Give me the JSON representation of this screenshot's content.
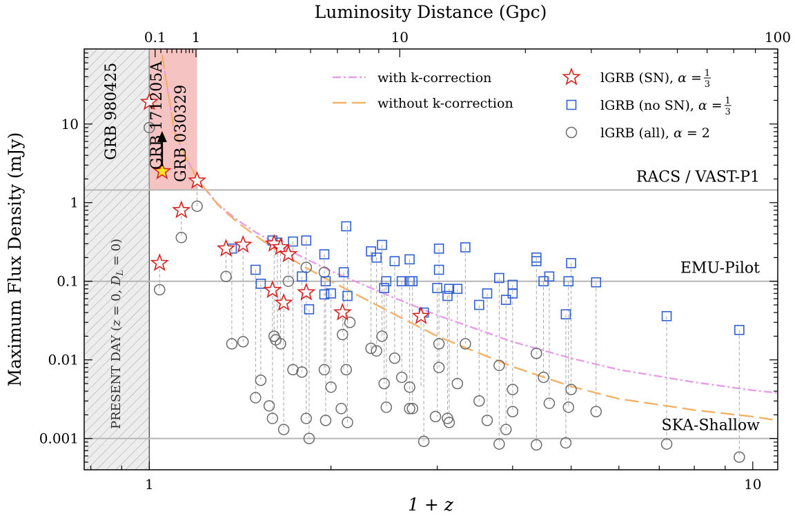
{
  "chart_data": {
    "type": "scatter",
    "xlabel": "1 + z",
    "ylabel": "Maximum Flux Density (mJy)",
    "top_xlabel": "Luminosity Distance (Gpc)",
    "x_scale": "log",
    "y_scale": "log",
    "xlim": [
      0.78,
      11.0
    ],
    "ylim": [
      0.0004,
      90
    ],
    "x_ticks": [
      {
        "v": 1,
        "label": "1"
      },
      {
        "v": 10,
        "label": "10"
      }
    ],
    "y_ticks": [
      {
        "v": 0.001,
        "label": "0.001"
      },
      {
        "v": 0.01,
        "label": "0.01"
      },
      {
        "v": 0.1,
        "label": "0.1"
      },
      {
        "v": 1,
        "label": "1"
      },
      {
        "v": 10,
        "label": "10"
      }
    ],
    "top_ticks": [
      {
        "z1": 1.0225,
        "label": "0.1"
      },
      {
        "z1": 1.195,
        "label": "1"
      },
      {
        "z1": 2.6,
        "label": "10"
      },
      {
        "z1": 11.0,
        "label": "100"
      }
    ],
    "survey_lines": [
      {
        "name": "RACS / VAST-P1",
        "y": 1.45
      },
      {
        "name": "EMU-Pilot",
        "y": 0.1
      },
      {
        "name": "SKA-Shallow",
        "y": 0.001
      }
    ],
    "present_day_label": "PRESENT DAY (z = 0, D_L = 0)",
    "present_day_label_parts": [
      "PRESENT DAY (",
      "z",
      " = 0, ",
      "D",
      "L",
      " = 0)"
    ],
    "highlight_band": {
      "x": [
        1.0,
        1.2
      ],
      "color": "#f4b8b8"
    },
    "grb_labels": [
      "GRB 980425",
      "GRB 171205A",
      "GRB 030329"
    ],
    "curves": [
      {
        "name": "with k-correction",
        "color": "#e79ce8",
        "dash": "12,4,3,4",
        "x": [
          1.05,
          1.1,
          1.15,
          1.2,
          1.3,
          1.4,
          1.5,
          1.6,
          1.8,
          2.0,
          2.5,
          3.0,
          4.0,
          5.0,
          6.0,
          8.0,
          10.0,
          11.0
        ],
        "y": [
          75,
          8,
          3.8,
          2.0,
          0.95,
          0.6,
          0.42,
          0.32,
          0.2,
          0.135,
          0.065,
          0.037,
          0.017,
          0.0105,
          0.0075,
          0.0052,
          0.0041,
          0.0038
        ]
      },
      {
        "name": "without k-correction",
        "color": "#f3b168",
        "dash": "20,8",
        "x": [
          1.05,
          1.1,
          1.15,
          1.2,
          1.3,
          1.4,
          1.5,
          1.6,
          1.8,
          2.0,
          2.5,
          3.0,
          4.0,
          5.0,
          6.0,
          8.0,
          10.0,
          11.0
        ],
        "y": [
          75,
          8,
          3.8,
          2.0,
          0.93,
          0.56,
          0.38,
          0.27,
          0.155,
          0.1,
          0.041,
          0.02,
          0.0082,
          0.0046,
          0.0032,
          0.0023,
          0.0019,
          0.0017
        ]
      }
    ],
    "series": [
      {
        "name": "lGRB (SN), α = 1/3",
        "marker": "star",
        "color": "#d81f1f",
        "points": [
          [
            1.0,
            19.0
          ],
          [
            1.04,
            0.17
          ],
          [
            1.13,
            0.8
          ],
          [
            1.2,
            1.9
          ],
          [
            1.34,
            0.26
          ],
          [
            1.43,
            0.29
          ],
          [
            1.61,
            0.3
          ],
          [
            1.6,
            0.077
          ],
          [
            1.65,
            0.27
          ],
          [
            1.67,
            0.053
          ],
          [
            1.7,
            0.22
          ],
          [
            1.82,
            0.072
          ],
          [
            2.09,
            0.04
          ],
          [
            2.82,
            0.036
          ]
        ]
      },
      {
        "name": "lGRB (SN), α = 1/3 (GRB 171205A)",
        "marker": "star-filled",
        "color": "#d81f1f",
        "fill": "#f7e71c",
        "points": [
          [
            1.05,
            2.5
          ]
        ]
      },
      {
        "name": "lGRB (no SN), α = 1/3",
        "marker": "square",
        "color": "#2f5fd1",
        "points": [
          [
            1.37,
            0.26
          ],
          [
            1.5,
            0.14
          ],
          [
            1.53,
            0.093
          ],
          [
            1.6,
            0.33
          ],
          [
            1.63,
            0.31
          ],
          [
            1.73,
            0.32
          ],
          [
            1.79,
            0.115
          ],
          [
            1.82,
            0.33
          ],
          [
            1.84,
            0.044
          ],
          [
            1.95,
            0.22
          ],
          [
            1.95,
            0.068
          ],
          [
            1.96,
            0.1
          ],
          [
            2.0,
            0.07
          ],
          [
            2.1,
            0.13
          ],
          [
            2.13,
            0.065
          ],
          [
            2.12,
            0.5
          ],
          [
            2.33,
            0.24
          ],
          [
            2.38,
            0.2
          ],
          [
            2.43,
            0.29
          ],
          [
            2.45,
            0.082
          ],
          [
            2.47,
            0.1
          ],
          [
            2.55,
            0.18
          ],
          [
            2.62,
            0.1
          ],
          [
            2.7,
            0.19
          ],
          [
            2.7,
            0.1
          ],
          [
            2.73,
            0.1
          ],
          [
            2.85,
            0.04
          ],
          [
            3.0,
            0.082
          ],
          [
            3.02,
            0.26
          ],
          [
            3.02,
            0.14
          ],
          [
            3.12,
            0.065
          ],
          [
            3.14,
            0.08
          ],
          [
            3.24,
            0.08
          ],
          [
            3.34,
            0.27
          ],
          [
            3.52,
            0.05
          ],
          [
            3.63,
            0.07
          ],
          [
            3.8,
            0.11
          ],
          [
            3.9,
            0.058
          ],
          [
            4.0,
            0.09
          ],
          [
            4.0,
            0.07
          ],
          [
            4.38,
            0.2
          ],
          [
            4.38,
            0.18
          ],
          [
            4.5,
            0.1
          ],
          [
            4.6,
            0.115
          ],
          [
            4.9,
            0.038
          ],
          [
            4.95,
            0.1
          ],
          [
            5.0,
            0.17
          ],
          [
            5.5,
            0.097
          ],
          [
            7.2,
            0.036
          ],
          [
            9.5,
            0.024
          ]
        ]
      },
      {
        "name": "lGRB (all), α = 2",
        "marker": "circle",
        "color": "#6a6a6a",
        "points": [
          [
            1.0,
            9.0
          ],
          [
            1.04,
            0.078
          ],
          [
            1.13,
            0.36
          ],
          [
            1.2,
            0.9
          ],
          [
            1.34,
            0.115
          ],
          [
            1.37,
            0.016
          ],
          [
            1.43,
            0.017
          ],
          [
            1.5,
            0.0033
          ],
          [
            1.53,
            0.0055
          ],
          [
            1.58,
            0.0026
          ],
          [
            1.6,
            0.0018
          ],
          [
            1.61,
            0.02
          ],
          [
            1.62,
            0.018
          ],
          [
            1.65,
            0.016
          ],
          [
            1.67,
            0.0013
          ],
          [
            1.7,
            0.1
          ],
          [
            1.73,
            0.0075
          ],
          [
            1.79,
            0.007
          ],
          [
            1.82,
            0.15
          ],
          [
            1.82,
            0.0018
          ],
          [
            1.84,
            0.001
          ],
          [
            1.95,
            0.13
          ],
          [
            1.95,
            0.0075
          ],
          [
            1.96,
            0.0017
          ],
          [
            2.0,
            0.0045
          ],
          [
            2.08,
            0.0024
          ],
          [
            2.09,
            0.021
          ],
          [
            2.12,
            0.0075
          ],
          [
            2.13,
            0.0016
          ],
          [
            2.15,
            0.03
          ],
          [
            2.33,
            0.014
          ],
          [
            2.38,
            0.013
          ],
          [
            2.43,
            0.02
          ],
          [
            2.45,
            0.005
          ],
          [
            2.47,
            0.0025
          ],
          [
            2.55,
            0.0105
          ],
          [
            2.62,
            0.006
          ],
          [
            2.7,
            0.0024
          ],
          [
            2.7,
            0.0045
          ],
          [
            2.73,
            0.0024
          ],
          [
            2.85,
            0.00092
          ],
          [
            2.98,
            0.0019
          ],
          [
            3.02,
            0.016
          ],
          [
            3.02,
            0.008
          ],
          [
            3.12,
            0.0018
          ],
          [
            3.14,
            0.0016
          ],
          [
            3.24,
            0.005
          ],
          [
            3.34,
            0.016
          ],
          [
            3.52,
            0.003
          ],
          [
            3.63,
            0.0017
          ],
          [
            3.8,
            0.0085
          ],
          [
            3.8,
            0.00085
          ],
          [
            3.9,
            0.0013
          ],
          [
            4.0,
            0.0042
          ],
          [
            4.0,
            0.0022
          ],
          [
            4.38,
            0.0121
          ],
          [
            4.38,
            0.00083
          ],
          [
            4.5,
            0.006
          ],
          [
            4.6,
            0.0028
          ],
          [
            4.9,
            0.00088
          ],
          [
            4.95,
            0.0025
          ],
          [
            5.0,
            0.0042
          ],
          [
            5.5,
            0.0022
          ],
          [
            7.2,
            0.00085
          ],
          [
            9.5,
            0.00058
          ]
        ]
      }
    ],
    "connector_pairs": [
      [
        1.04,
        0.17,
        0.078
      ],
      [
        1.13,
        0.8,
        0.36
      ],
      [
        1.2,
        1.9,
        0.9
      ],
      [
        1.34,
        0.26,
        0.115
      ],
      [
        1.37,
        0.26,
        0.016
      ],
      [
        1.43,
        0.29,
        0.017
      ],
      [
        1.5,
        0.14,
        0.0033
      ],
      [
        1.53,
        0.093,
        0.0055
      ],
      [
        1.6,
        0.077,
        0.0018
      ],
      [
        1.61,
        0.3,
        0.02
      ],
      [
        1.63,
        0.31,
        0.018
      ],
      [
        1.65,
        0.27,
        0.016
      ],
      [
        1.67,
        0.053,
        0.0013
      ],
      [
        1.7,
        0.22,
        0.1
      ],
      [
        1.73,
        0.32,
        0.0075
      ],
      [
        1.79,
        0.115,
        0.007
      ],
      [
        1.82,
        0.33,
        0.0018
      ],
      [
        1.84,
        0.044,
        0.001
      ],
      [
        1.95,
        0.22,
        0.0075
      ],
      [
        1.96,
        0.1,
        0.0017
      ],
      [
        2.0,
        0.07,
        0.0045
      ],
      [
        2.09,
        0.04,
        0.021
      ],
      [
        2.1,
        0.13,
        0.0075
      ],
      [
        2.13,
        0.5,
        0.0016
      ],
      [
        2.33,
        0.24,
        0.014
      ],
      [
        2.38,
        0.2,
        0.013
      ],
      [
        2.43,
        0.29,
        0.02
      ],
      [
        2.45,
        0.082,
        0.005
      ],
      [
        2.47,
        0.1,
        0.0025
      ],
      [
        2.55,
        0.18,
        0.0105
      ],
      [
        2.62,
        0.1,
        0.006
      ],
      [
        2.7,
        0.19,
        0.0024
      ],
      [
        2.73,
        0.1,
        0.0024
      ],
      [
        2.82,
        0.036,
        0.0045
      ],
      [
        2.85,
        0.04,
        0.00092
      ],
      [
        3.0,
        0.082,
        0.0019
      ],
      [
        3.02,
        0.26,
        0.008
      ],
      [
        3.12,
        0.065,
        0.0018
      ],
      [
        3.14,
        0.08,
        0.0016
      ],
      [
        3.24,
        0.08,
        0.005
      ],
      [
        3.34,
        0.27,
        0.016
      ],
      [
        3.52,
        0.05,
        0.003
      ],
      [
        3.63,
        0.07,
        0.0017
      ],
      [
        3.8,
        0.11,
        0.00085
      ],
      [
        3.9,
        0.058,
        0.0013
      ],
      [
        4.0,
        0.09,
        0.0022
      ],
      [
        4.38,
        0.2,
        0.00083
      ],
      [
        4.5,
        0.1,
        0.006
      ],
      [
        4.6,
        0.115,
        0.0028
      ],
      [
        4.9,
        0.038,
        0.00088
      ],
      [
        4.95,
        0.1,
        0.0025
      ],
      [
        5.0,
        0.17,
        0.0042
      ],
      [
        5.5,
        0.097,
        0.0022
      ],
      [
        7.2,
        0.036,
        0.00085
      ],
      [
        9.5,
        0.024,
        0.00058
      ]
    ],
    "arrow": {
      "x": 1.05,
      "from": 2.9,
      "to": 7.5
    },
    "legend": {
      "placement": "top-right",
      "lines": [
        {
          "name": "with k-correction",
          "color": "#e79ce8",
          "dash": "12,4,3,4"
        },
        {
          "name": "without k-correction",
          "color": "#f3b168",
          "dash": "20,8"
        }
      ],
      "markers": [
        {
          "marker": "star",
          "color": "#d81f1f",
          "parts": [
            {
              "t": "lGRB (SN), "
            },
            {
              "t": "α",
              "i": true
            },
            {
              "t": " = "
            }
          ],
          "frac": [
            "1",
            "3"
          ]
        },
        {
          "marker": "square",
          "color": "#2f5fd1",
          "parts": [
            {
              "t": "lGRB (no SN), "
            },
            {
              "t": "α",
              "i": true
            },
            {
              "t": " = "
            }
          ],
          "frac": [
            "1",
            "3"
          ]
        },
        {
          "marker": "circle",
          "color": "#6a6a6a",
          "parts": [
            {
              "t": "lGRB (all), "
            },
            {
              "t": "α",
              "i": true
            },
            {
              "t": " = 2"
            }
          ],
          "frac": []
        }
      ]
    }
  }
}
